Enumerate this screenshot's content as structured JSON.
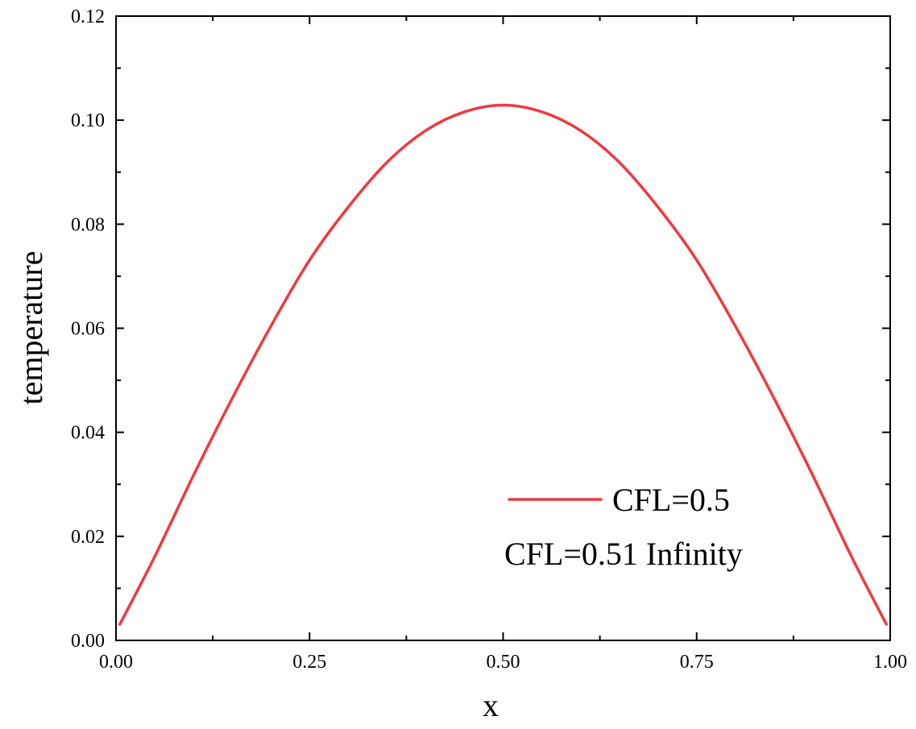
{
  "chart_data": {
    "type": "line",
    "title": "",
    "xlabel": "x",
    "ylabel": "temperature",
    "xlim": [
      0.0,
      1.0
    ],
    "ylim": [
      0.0,
      0.12
    ],
    "x_ticks": [
      "0.00",
      "0.25",
      "0.50",
      "0.75",
      "1.00"
    ],
    "y_ticks": [
      "0.00",
      "0.02",
      "0.04",
      "0.06",
      "0.08",
      "0.10",
      "0.12"
    ],
    "grid": false,
    "legend_position": "bottom-right",
    "series": [
      {
        "name": "CFL=0.5",
        "color": "#f0393f",
        "x": [
          0.005,
          0.05,
          0.1,
          0.15,
          0.2,
          0.25,
          0.3,
          0.35,
          0.4,
          0.45,
          0.5,
          0.55,
          0.6,
          0.65,
          0.7,
          0.75,
          0.8,
          0.85,
          0.9,
          0.95,
          0.995
        ],
        "values": [
          0.0031,
          0.0161,
          0.0317,
          0.0465,
          0.0604,
          0.0731,
          0.0833,
          0.0919,
          0.098,
          0.1016,
          0.1029,
          0.1016,
          0.098,
          0.0919,
          0.0833,
          0.0731,
          0.0604,
          0.0465,
          0.0317,
          0.0161,
          0.0031
        ]
      }
    ],
    "legend_entries": [
      {
        "label": "CFL=0.5",
        "has_line": true
      },
      {
        "label": "CFL=0.51 Infinity",
        "has_line": false
      }
    ]
  }
}
